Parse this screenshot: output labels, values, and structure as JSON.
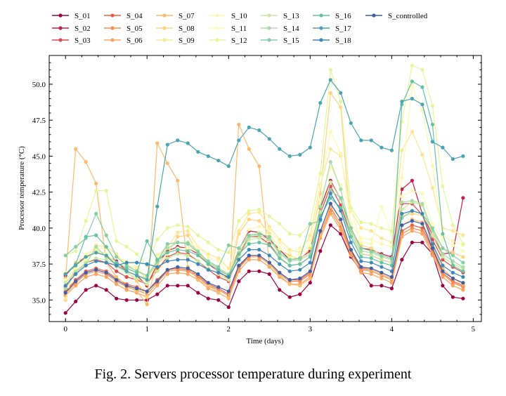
{
  "caption": "Fig. 2.  Servers processor temperature during experiment",
  "chart_data": {
    "type": "line",
    "title": "",
    "xlabel": "Time (days)",
    "ylabel": "Processor temperature (°C)",
    "xlim": [
      -0.2,
      5.1
    ],
    "ylim": [
      33.5,
      52.0
    ],
    "x_ticks": [
      0,
      1,
      2,
      3,
      4,
      5
    ],
    "y_ticks": [
      35.0,
      37.5,
      40.0,
      42.5,
      45.0,
      47.5,
      50.0
    ],
    "grid": false,
    "legend_position": "top, outside plot, 7 columns",
    "x": [
      0,
      0.125,
      0.25,
      0.375,
      0.5,
      0.625,
      0.75,
      0.875,
      1,
      1.125,
      1.25,
      1.375,
      1.5,
      1.625,
      1.75,
      1.875,
      2,
      2.125,
      2.25,
      2.375,
      2.5,
      2.625,
      2.75,
      2.875,
      3,
      3.125,
      3.25,
      3.375,
      3.5,
      3.625,
      3.75,
      3.875,
      4,
      4.125,
      4.25,
      4.375,
      4.5,
      4.625,
      4.75,
      4.875
    ],
    "series": [
      {
        "name": "S_01",
        "color": "#9e0142",
        "values": [
          34.1,
          34.9,
          35.7,
          36.0,
          35.7,
          35.1,
          35.0,
          35.0,
          35.0,
          35.4,
          36.0,
          36.0,
          36.0,
          35.5,
          35.1,
          35.0,
          34.5,
          36.3,
          37.0,
          37.0,
          36.8,
          35.7,
          35.2,
          35.4,
          36.2,
          38.4,
          40.2,
          39.6,
          38.0,
          37.0,
          36.0,
          36.0,
          35.8,
          37.8,
          39.0,
          39.0,
          38.2,
          36.0,
          35.2,
          35.1
        ]
      },
      {
        "name": "S_02",
        "color": "#c51d4a",
        "values": [
          36.7,
          37.5,
          38.0,
          38.3,
          38.1,
          37.7,
          37.0,
          36.7,
          36.0,
          37.5,
          38.4,
          38.7,
          38.6,
          38.2,
          37.5,
          37.0,
          36.5,
          38.6,
          39.8,
          39.7,
          39.2,
          38.5,
          37.8,
          37.9,
          38.4,
          41.4,
          43.3,
          42.0,
          40.0,
          38.6,
          38.5,
          38.2,
          38.0,
          42.7,
          43.3,
          41.0,
          39.5,
          38.2,
          38.3,
          42.1
        ]
      },
      {
        "name": "S_03",
        "color": "#dc4a4c",
        "values": [
          35.9,
          37.0,
          37.6,
          37.8,
          37.6,
          37.0,
          36.6,
          36.4,
          36.1,
          37.1,
          38.0,
          38.3,
          38.2,
          37.7,
          37.1,
          36.6,
          36.3,
          38.1,
          39.4,
          39.4,
          38.9,
          38.0,
          37.4,
          37.5,
          38.0,
          41.0,
          42.9,
          41.6,
          39.6,
          38.2,
          38.1,
          37.8,
          37.6,
          41.7,
          41.7,
          40.9,
          39.2,
          37.8,
          37.3,
          36.9
        ]
      },
      {
        "name": "S_04",
        "color": "#ec6044",
        "values": [
          35.6,
          36.4,
          37.0,
          37.2,
          37.0,
          36.5,
          36.1,
          35.9,
          35.6,
          36.4,
          37.1,
          37.2,
          37.1,
          36.7,
          36.1,
          35.8,
          35.4,
          37.3,
          38.1,
          38.1,
          37.6,
          36.9,
          36.4,
          36.4,
          36.9,
          39.6,
          41.4,
          40.3,
          38.4,
          37.2,
          37.1,
          36.8,
          36.5,
          39.8,
          40.2,
          40.0,
          38.5,
          36.9,
          36.3,
          36.0
        ]
      },
      {
        "name": "S_05",
        "color": "#f88d52",
        "values": [
          35.4,
          36.2,
          36.8,
          37.0,
          36.8,
          36.3,
          35.9,
          35.7,
          35.4,
          36.2,
          37.0,
          37.1,
          37.0,
          36.6,
          36.0,
          35.7,
          35.3,
          37.2,
          38.0,
          38.0,
          37.5,
          36.8,
          36.3,
          36.3,
          36.8,
          39.5,
          41.2,
          40.1,
          38.3,
          37.1,
          37.0,
          36.7,
          36.4,
          39.6,
          40.0,
          39.8,
          38.3,
          36.8,
          36.2,
          35.9
        ]
      },
      {
        "name": "S_06",
        "color": "#fba35c",
        "values": [
          35.3,
          36.0,
          36.6,
          36.8,
          36.6,
          36.1,
          35.7,
          35.5,
          35.2,
          36.0,
          36.8,
          36.9,
          36.8,
          36.4,
          35.8,
          35.5,
          35.1,
          37.0,
          37.8,
          37.8,
          37.3,
          36.6,
          36.1,
          36.1,
          36.6,
          39.3,
          41.0,
          39.9,
          38.1,
          36.9,
          36.8,
          36.5,
          36.2,
          39.4,
          39.8,
          39.6,
          38.1,
          36.6,
          36.0,
          35.7
        ]
      },
      {
        "name": "S_07",
        "color": "#fdba6b",
        "values": [
          36.5,
          45.5,
          44.6,
          43.1,
          37.6,
          36.6,
          36.0,
          35.6,
          34.7,
          45.9,
          44.5,
          43.3,
          37.3,
          36.4,
          36.0,
          35.5,
          35.1,
          47.2,
          45.5,
          44.3,
          37.5,
          36.7,
          36.1,
          36.0,
          36.5,
          39.5,
          41.5,
          40.3,
          38.5,
          37.3,
          37.1,
          36.8,
          36.5,
          40.2,
          40.6,
          40.4,
          38.8,
          37.2,
          36.5,
          36.1
        ]
      },
      {
        "name": "S_08",
        "color": "#fed27f",
        "values": [
          35.0,
          37.6,
          37.8,
          38.5,
          38.2,
          37.5,
          37.0,
          36.3,
          35.2,
          37.5,
          38.2,
          39.4,
          39.5,
          38.2,
          37.6,
          37.0,
          36.4,
          39.6,
          40.6,
          40.5,
          39.6,
          38.5,
          38.1,
          37.8,
          38.6,
          42.4,
          49.4,
          48.4,
          39.9,
          38.8,
          38.6,
          38.1,
          37.9,
          40.8,
          41.0,
          40.9,
          39.8,
          38.6,
          38.3,
          38.0
        ]
      },
      {
        "name": "S_09",
        "color": "#fee593",
        "values": [
          35.1,
          37.4,
          37.9,
          38.8,
          38.7,
          38.2,
          37.4,
          37.2,
          36.4,
          38.1,
          38.7,
          39.7,
          39.8,
          38.7,
          38.2,
          37.9,
          37.2,
          39.8,
          41.0,
          41.1,
          40.1,
          39.2,
          38.5,
          38.3,
          39.5,
          43.0,
          45.5,
          45.0,
          41.2,
          40.0,
          39.8,
          39.3,
          39.0,
          45.4,
          46.7,
          45.1,
          42.8,
          40.0,
          39.8,
          39.5
        ]
      },
      {
        "name": "S_10",
        "color": "#fef6b0",
        "values": [
          36.9,
          37.5,
          38.2,
          38.6,
          38.6,
          38.0,
          37.7,
          37.3,
          36.5,
          38.0,
          38.6,
          39.0,
          39.0,
          38.7,
          38.0,
          37.7,
          36.8,
          38.6,
          39.9,
          40.1,
          39.9,
          39.0,
          38.3,
          38.6,
          39.2,
          42.9,
          46.7,
          45.2,
          40.3,
          39.3,
          39.2,
          38.9,
          38.7,
          43.5,
          49.9,
          48.2,
          44.3,
          39.5,
          39.1,
          38.8
        ]
      },
      {
        "name": "S_11",
        "color": "#f7fcb4",
        "values": [
          36.4,
          37.2,
          37.8,
          38.4,
          38.2,
          37.6,
          37.3,
          36.9,
          36.2,
          37.6,
          38.2,
          38.6,
          38.6,
          38.3,
          37.6,
          37.3,
          36.5,
          38.2,
          39.5,
          39.7,
          39.5,
          38.6,
          37.9,
          38.2,
          38.8,
          42.0,
          44.2,
          43.0,
          41.3,
          39.0,
          38.9,
          41.5,
          39.6,
          42.2,
          42.6,
          42.4,
          40.3,
          39.2,
          38.8,
          38.4
        ]
      },
      {
        "name": "S_12",
        "color": "#e6f598",
        "values": [
          38.1,
          38.4,
          40.5,
          42.6,
          42.6,
          39.1,
          38.7,
          38.2,
          37.4,
          39.2,
          40.0,
          40.2,
          40.1,
          39.5,
          39.0,
          38.5,
          38.3,
          40.5,
          41.2,
          41.3,
          40.8,
          40.3,
          39.6,
          39.5,
          40.3,
          43.8,
          51.0,
          48.8,
          41.4,
          40.4,
          40.3,
          40.0,
          39.8,
          47.4,
          51.3,
          51.0,
          48.5,
          42.9,
          40.2,
          38.9
        ]
      },
      {
        "name": "S_13",
        "color": "#c9e99e",
        "values": [
          36.2,
          37.0,
          37.6,
          37.9,
          37.8,
          37.3,
          36.9,
          36.5,
          36.1,
          37.0,
          37.9,
          38.2,
          38.1,
          37.7,
          37.2,
          36.8,
          36.4,
          38.0,
          39.2,
          39.3,
          38.8,
          38.0,
          37.4,
          37.5,
          38.0,
          41.1,
          43.2,
          42.0,
          39.6,
          38.2,
          38.1,
          37.8,
          37.6,
          41.3,
          41.8,
          41.6,
          39.5,
          38.0,
          37.5,
          37.2
        ]
      },
      {
        "name": "S_14",
        "color": "#a9dba4",
        "values": [
          35.8,
          36.9,
          37.5,
          38.7,
          38.0,
          37.4,
          37.0,
          36.7,
          36.5,
          37.6,
          38.6,
          39.0,
          39.0,
          38.4,
          37.6,
          37.2,
          36.8,
          38.3,
          39.4,
          39.5,
          39.2,
          38.2,
          37.7,
          37.8,
          38.2,
          41.5,
          44.6,
          42.7,
          39.8,
          38.4,
          38.3,
          38.0,
          37.8,
          41.8,
          41.9,
          41.7,
          39.8,
          38.2,
          37.7,
          37.3
        ]
      },
      {
        "name": "S_15",
        "color": "#86cfa5",
        "values": [
          38.1,
          38.7,
          39.3,
          41.0,
          39.5,
          38.0,
          37.4,
          37.0,
          36.7,
          37.7,
          38.9,
          39.0,
          38.9,
          38.3,
          37.7,
          37.3,
          38.8,
          38.6,
          39.5,
          39.6,
          39.4,
          38.3,
          37.8,
          37.9,
          40.3,
          40.5,
          42.6,
          42.1,
          40.0,
          38.6,
          38.4,
          38.1,
          37.9,
          40.7,
          41.2,
          41.0,
          40.0,
          38.6,
          38.1,
          37.6
        ]
      },
      {
        "name": "S_16",
        "color": "#66c2a5",
        "values": [
          36.8,
          37.5,
          39.4,
          39.5,
          38.7,
          37.6,
          37.2,
          36.9,
          39.1,
          37.8,
          38.3,
          38.5,
          38.4,
          38.1,
          37.5,
          37.1,
          36.7,
          38.2,
          38.9,
          39.0,
          38.8,
          37.9,
          37.4,
          37.5,
          38.0,
          40.8,
          42.1,
          41.4,
          39.4,
          38.0,
          37.9,
          37.6,
          37.4,
          48.6,
          50.2,
          49.8,
          47.2,
          39.6,
          37.4,
          37.0
        ]
      },
      {
        "name": "S_17",
        "color": "#4ba4b1",
        "values": [
          36.8,
          37.4,
          38.0,
          38.3,
          38.1,
          37.4,
          37.0,
          36.7,
          36.4,
          41.5,
          45.8,
          46.1,
          45.9,
          45.3,
          45.0,
          44.7,
          44.3,
          46.1,
          47.0,
          46.8,
          46.2,
          45.5,
          45.0,
          45.1,
          45.6,
          48.7,
          50.3,
          49.4,
          47.3,
          46.1,
          46.1,
          45.6,
          45.4,
          48.8,
          49.0,
          48.6,
          46.0,
          45.6,
          44.8,
          45.0
        ]
      },
      {
        "name": "S_18",
        "color": "#3d88b8",
        "values": [
          36.0,
          36.8,
          37.4,
          37.7,
          37.6,
          37.4,
          37.6,
          37.6,
          37.5,
          37.3,
          37.7,
          37.8,
          37.8,
          37.5,
          37.1,
          36.9,
          36.6,
          37.8,
          38.5,
          38.5,
          38.1,
          37.5,
          37.0,
          37.1,
          37.6,
          40.6,
          42.4,
          41.2,
          39.0,
          37.7,
          37.6,
          37.3,
          37.0,
          41.0,
          41.2,
          41.0,
          38.9,
          37.4,
          36.9,
          36.6
        ]
      },
      {
        "name": "S_controlled",
        "color": "#3f5ea8",
        "values": [
          35.5,
          36.3,
          36.9,
          37.1,
          36.9,
          36.4,
          36.0,
          35.8,
          35.6,
          36.3,
          37.1,
          37.3,
          37.2,
          36.8,
          36.2,
          35.9,
          35.6,
          37.4,
          38.1,
          38.1,
          37.6,
          36.9,
          36.4,
          36.5,
          37.0,
          39.8,
          41.7,
          40.6,
          38.5,
          37.3,
          37.2,
          36.9,
          36.6,
          40.2,
          40.5,
          40.3,
          38.6,
          37.0,
          36.5,
          36.2
        ]
      }
    ]
  }
}
